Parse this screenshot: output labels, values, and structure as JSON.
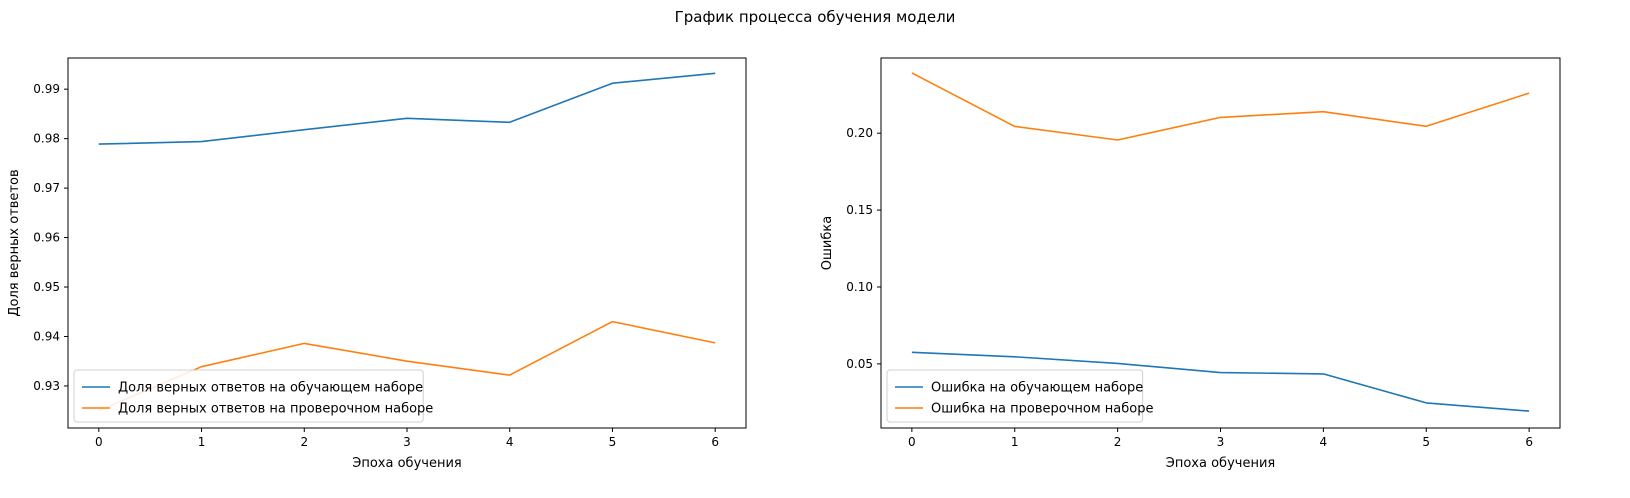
{
  "figure": {
    "title": "График процесса обучения модели"
  },
  "chart_data": [
    {
      "type": "line",
      "title": "",
      "xlabel": "Эпоха обучения",
      "ylabel": "Доля верных ответов",
      "x": [
        0,
        1,
        2,
        3,
        4,
        5,
        6
      ],
      "xticks": [
        0,
        1,
        2,
        3,
        4,
        5,
        6
      ],
      "yticks": [
        0.93,
        0.94,
        0.95,
        0.96,
        0.97,
        0.98,
        0.99
      ],
      "ylim": [
        0.9215,
        0.9963
      ],
      "xlim": [
        -0.3,
        6.3
      ],
      "grid": false,
      "legend_position": "upper-left",
      "series": [
        {
          "name": "Доля верных ответов на обучающем наборе",
          "color": "#1f77b4",
          "values": [
            0.9789,
            0.9794,
            0.9818,
            0.9841,
            0.9833,
            0.9912,
            0.9932
          ]
        },
        {
          "name": "Доля верных ответов на проверочном наборе",
          "color": "#ff7f0e",
          "values": [
            0.925,
            0.9339,
            0.9386,
            0.935,
            0.9322,
            0.943,
            0.9387
          ]
        }
      ]
    },
    {
      "type": "line",
      "title": "",
      "xlabel": "Эпоха обучения",
      "ylabel": "Ошибка",
      "x": [
        0,
        1,
        2,
        3,
        4,
        5,
        6
      ],
      "xticks": [
        0,
        1,
        2,
        3,
        4,
        5,
        6
      ],
      "yticks": [
        0.05,
        0.1,
        0.15,
        0.2
      ],
      "ylim": [
        0.0083,
        0.2489
      ],
      "xlim": [
        -0.3,
        6.3
      ],
      "grid": false,
      "legend_position": "lower-left",
      "series": [
        {
          "name": "Ошибка на обучающем наборе",
          "color": "#1f77b4",
          "values": [
            0.0575,
            0.0546,
            0.0503,
            0.0443,
            0.0435,
            0.0246,
            0.0193
          ]
        },
        {
          "name": "Ошибка на проверочном наборе",
          "color": "#ff7f0e",
          "values": [
            0.2392,
            0.2044,
            0.1956,
            0.2103,
            0.214,
            0.2045,
            0.2261
          ]
        }
      ]
    }
  ]
}
